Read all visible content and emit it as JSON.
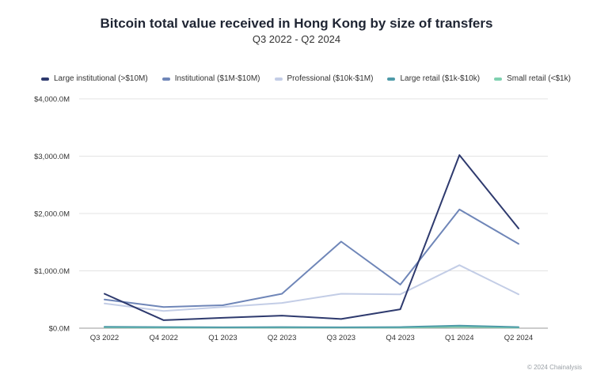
{
  "chart_data": {
    "type": "line",
    "title": "Bitcoin total value received in Hong Kong by size of transfers",
    "subtitle": "Q3 2022 - Q2 2024",
    "xlabel": "",
    "ylabel": "",
    "categories": [
      "Q3 2022",
      "Q4 2022",
      "Q1 2023",
      "Q2 2023",
      "Q3 2023",
      "Q4 2023",
      "Q1 2024",
      "Q2 2024"
    ],
    "ylim": [
      0,
      4000
    ],
    "yticks": [
      {
        "value": 0,
        "label": "$0.0M"
      },
      {
        "value": 1000,
        "label": "$1,000.0M"
      },
      {
        "value": 2000,
        "label": "$2,000.0M"
      },
      {
        "value": 3000,
        "label": "$3,000.0M"
      },
      {
        "value": 4000,
        "label": "$4,000.0M"
      }
    ],
    "grid": true,
    "legend_position": "top-left",
    "series": [
      {
        "name": "Large institutional (>$10M)",
        "color": "#2e3a6e",
        "values": [
          600,
          140,
          180,
          220,
          160,
          330,
          3020,
          1740
        ]
      },
      {
        "name": "Institutional ($1M-$10M)",
        "color": "#6f86b8",
        "values": [
          500,
          370,
          400,
          600,
          1510,
          760,
          2070,
          1470
        ]
      },
      {
        "name": "Professional ($10k-$1M)",
        "color": "#c3cde6",
        "values": [
          430,
          300,
          370,
          440,
          600,
          590,
          1100,
          590
        ]
      },
      {
        "name": "Large retail ($1k-$10k)",
        "color": "#4e9aa8",
        "values": [
          25,
          20,
          15,
          20,
          15,
          20,
          45,
          20
        ]
      },
      {
        "name": "Small retail (<$1k)",
        "color": "#7fd1b0",
        "values": [
          15,
          10,
          10,
          10,
          10,
          10,
          25,
          10
        ]
      }
    ]
  },
  "watermark": "© 2024 Chainalysis"
}
